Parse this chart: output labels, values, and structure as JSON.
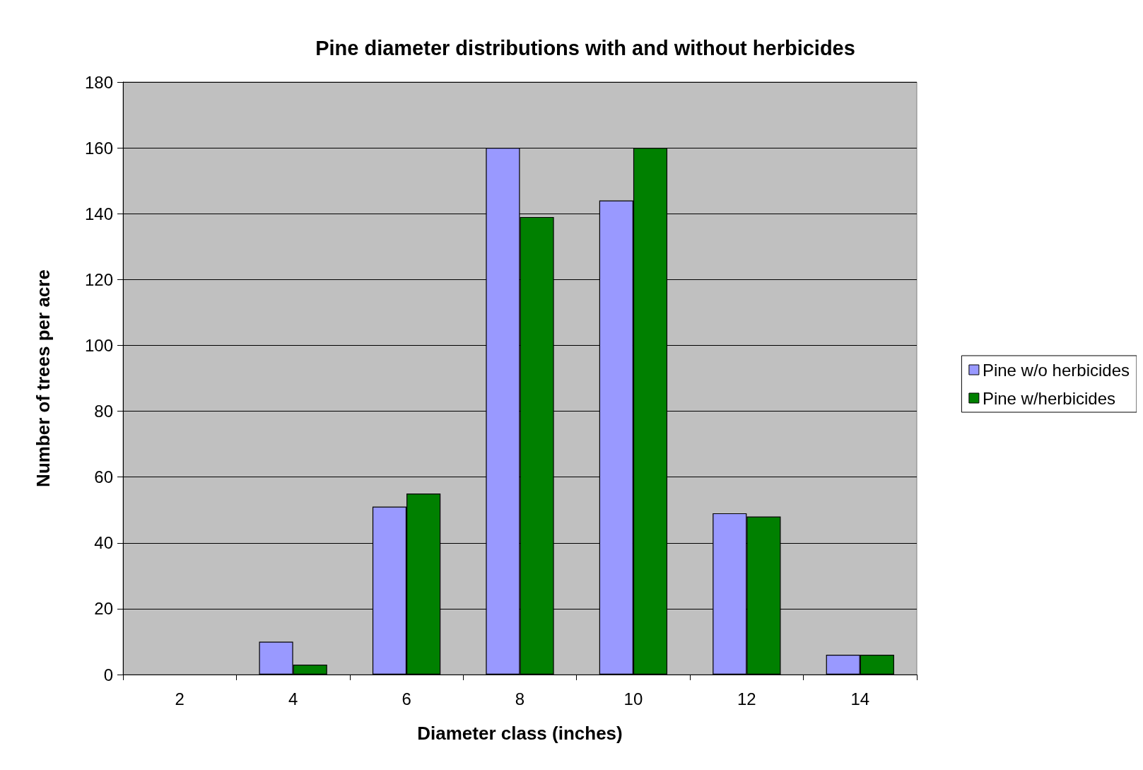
{
  "chart_data": {
    "type": "bar",
    "title": "Pine diameter distributions with and without herbicides",
    "xlabel": "Diameter class (inches)",
    "ylabel": "Number of trees per acre",
    "categories": [
      "2",
      "4",
      "6",
      "8",
      "10",
      "12",
      "14"
    ],
    "series": [
      {
        "name": "Pine w/o herbicides",
        "color": "#9999ff",
        "values": [
          0,
          10,
          51,
          160,
          144,
          49,
          6
        ]
      },
      {
        "name": "Pine w/herbicides",
        "color": "#008000",
        "values": [
          0,
          3,
          55,
          139,
          160,
          48,
          6
        ]
      }
    ],
    "ylim": [
      0,
      180
    ],
    "yticks": [
      0,
      20,
      40,
      60,
      80,
      100,
      120,
      140,
      160,
      180
    ],
    "grid": "y",
    "legend": "right"
  }
}
